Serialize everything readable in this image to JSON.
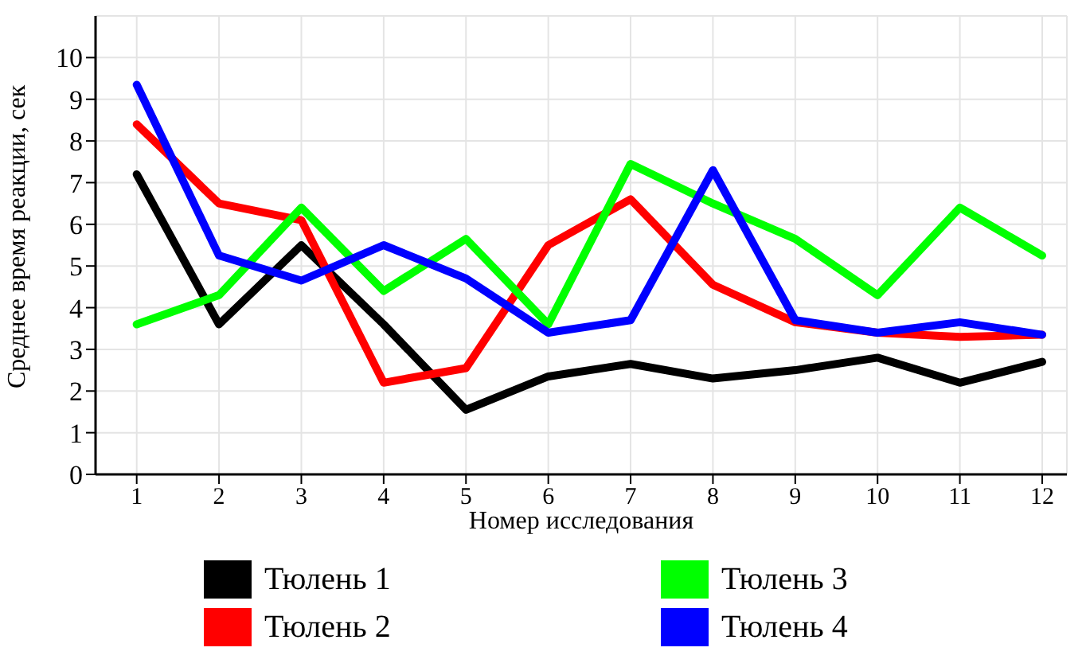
{
  "chart_data": {
    "type": "line",
    "xlabel": "Номер исследования",
    "ylabel": "Среднее время реакции, сек",
    "x": [
      1,
      2,
      3,
      4,
      5,
      6,
      7,
      8,
      9,
      10,
      11,
      12
    ],
    "xlim": [
      0.5,
      12.3
    ],
    "xticks": [
      1,
      2,
      3,
      4,
      5,
      6,
      7,
      8,
      9,
      10,
      11,
      12
    ],
    "ylim": [
      0,
      11
    ],
    "yticks": [
      0,
      1,
      2,
      3,
      4,
      5,
      6,
      7,
      8,
      9,
      10
    ],
    "grid": true,
    "legend": "bottom",
    "marker": "none",
    "line_style": "solid",
    "series": [
      {
        "name": "Тюлень 1",
        "color": "#000000",
        "values": [
          7.2,
          3.6,
          5.5,
          3.6,
          1.55,
          2.35,
          2.65,
          2.3,
          2.5,
          2.8,
          2.2,
          2.7
        ]
      },
      {
        "name": "Тюлень 2",
        "color": "#ff0000",
        "values": [
          8.4,
          6.5,
          6.1,
          2.2,
          2.55,
          5.5,
          6.6,
          4.55,
          3.65,
          3.4,
          3.3,
          3.35
        ]
      },
      {
        "name": "Тюлень 3",
        "color": "#00ff00",
        "values": [
          3.6,
          4.3,
          6.4,
          4.4,
          5.65,
          3.6,
          7.45,
          6.5,
          5.65,
          4.3,
          6.4,
          5.25
        ]
      },
      {
        "name": "Тюлень 4",
        "color": "#0000ff",
        "values": [
          9.35,
          5.25,
          4.65,
          5.5,
          4.7,
          3.4,
          3.7,
          7.3,
          3.7,
          3.4,
          3.65,
          3.35
        ]
      }
    ]
  }
}
